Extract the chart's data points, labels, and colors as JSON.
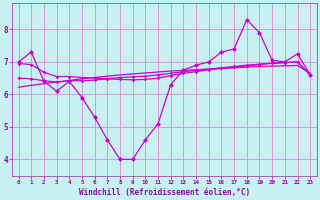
{
  "xlabel": "Windchill (Refroidissement éolien,°C)",
  "background_color": "#c8f0f0",
  "grid_color": "#dd88cc",
  "line_color": "#cc00cc",
  "xlim": [
    -0.5,
    23.5
  ],
  "ylim": [
    3.5,
    8.8
  ],
  "yticks": [
    4,
    5,
    6,
    7,
    8
  ],
  "xticks": [
    0,
    1,
    2,
    3,
    4,
    5,
    6,
    7,
    8,
    9,
    10,
    11,
    12,
    13,
    14,
    15,
    16,
    17,
    18,
    19,
    20,
    21,
    22,
    23
  ],
  "main_y": [
    7.0,
    7.3,
    6.4,
    6.1,
    6.4,
    5.9,
    5.3,
    4.6,
    4.0,
    4.0,
    4.6,
    5.1,
    6.3,
    6.75,
    6.9,
    7.0,
    7.3,
    7.4,
    8.3,
    7.9,
    7.05,
    7.0,
    7.25,
    6.6
  ],
  "smooth_y1": [
    6.5,
    6.48,
    6.42,
    6.38,
    6.42,
    6.42,
    6.44,
    6.48,
    6.52,
    6.54,
    6.56,
    6.6,
    6.65,
    6.7,
    6.74,
    6.78,
    6.82,
    6.86,
    6.9,
    6.93,
    6.96,
    6.98,
    7.0,
    6.6
  ],
  "smooth_y2": [
    6.95,
    6.92,
    6.68,
    6.55,
    6.55,
    6.52,
    6.5,
    6.48,
    6.46,
    6.45,
    6.46,
    6.5,
    6.58,
    6.65,
    6.7,
    6.76,
    6.8,
    6.84,
    6.88,
    6.92,
    6.96,
    6.98,
    7.0,
    6.6
  ],
  "linear_y": [
    6.22,
    6.28,
    6.33,
    6.38,
    6.43,
    6.48,
    6.52,
    6.56,
    6.6,
    6.63,
    6.66,
    6.69,
    6.72,
    6.74,
    6.76,
    6.78,
    6.8,
    6.82,
    6.84,
    6.86,
    6.87,
    6.88,
    6.89,
    6.65
  ]
}
